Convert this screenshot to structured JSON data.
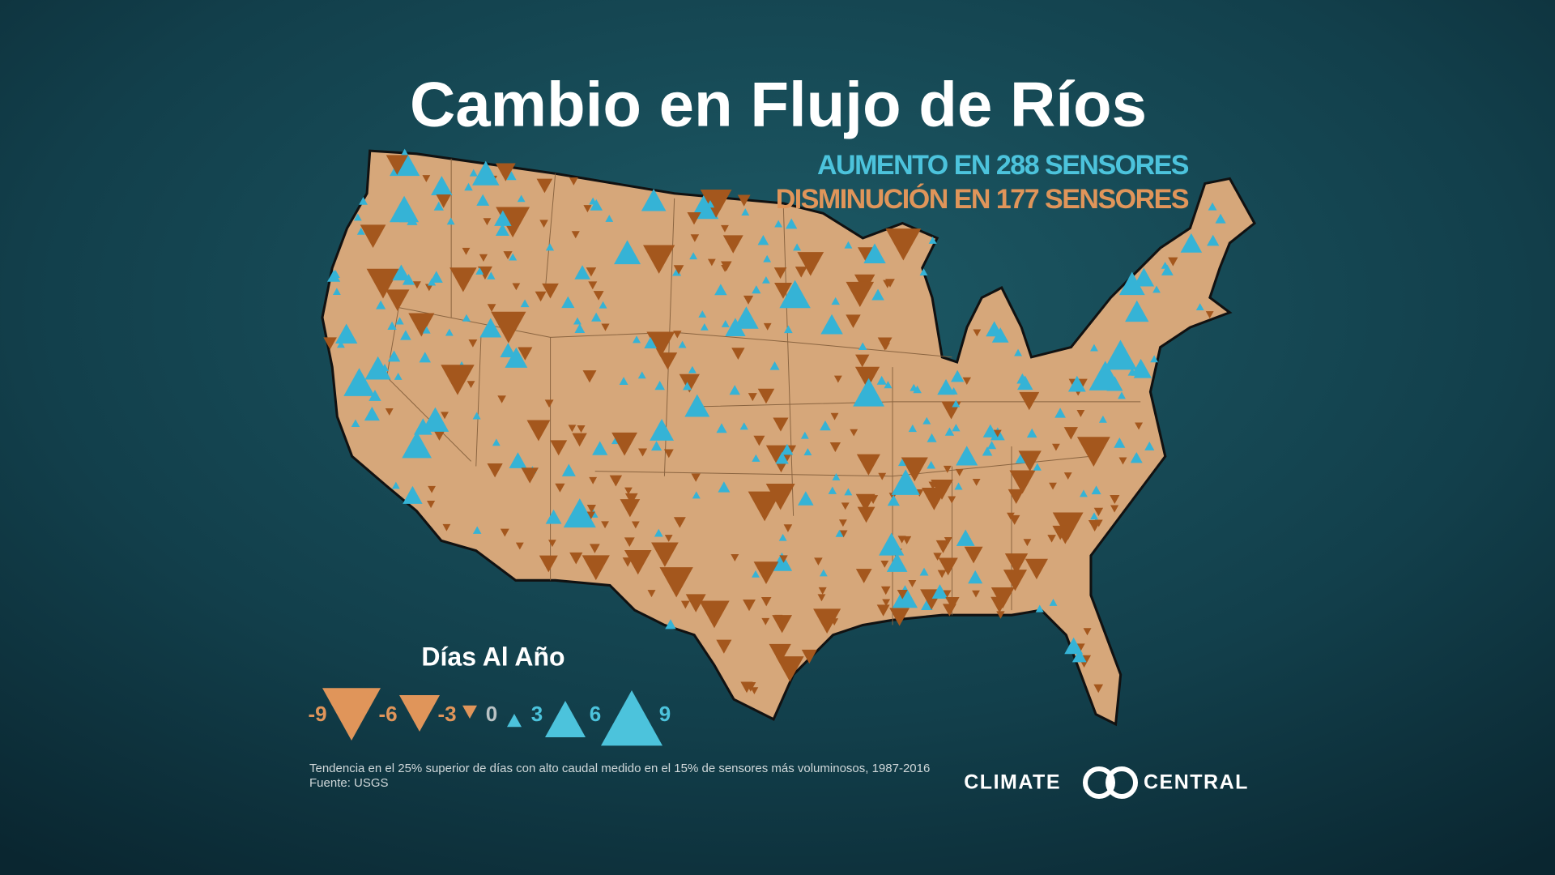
{
  "header": {
    "title": "Cambio en Flujo de Ríos",
    "increase": "AUMENTO EN 288 SENSORES",
    "decrease": "DISMINUCIÓN EN 177 SENSORES"
  },
  "legend": {
    "title": "Días Al Año",
    "values": [
      -9,
      -6,
      -3,
      0,
      3,
      6,
      9
    ]
  },
  "footer": {
    "note": "Tendencia en el 25% superior de días con alto caudal medido en el 15% de sensores más voluminosos, 1987-2016",
    "source": "Fuente: USGS",
    "logo_left": "CLIMATE",
    "logo_right": "CENTRAL"
  }
}
